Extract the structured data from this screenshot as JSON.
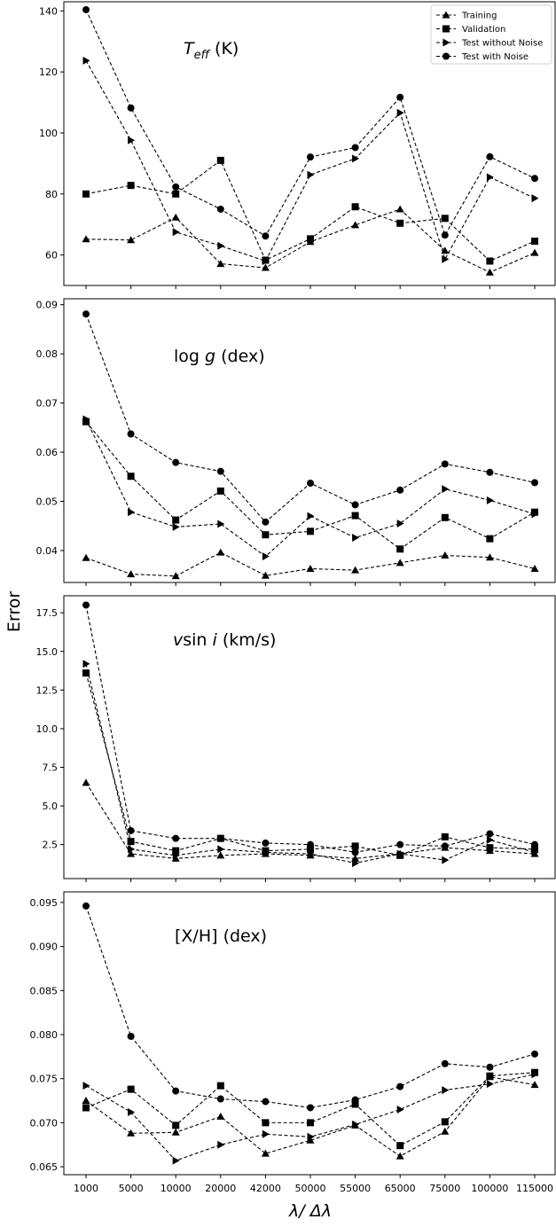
{
  "chart_data": {
    "type": "line",
    "ylabel": "Error",
    "xlabel": "λ/ Δλ",
    "categories": [
      "1000",
      "5000",
      "10000",
      "20000",
      "42000",
      "50000",
      "55000",
      "65000",
      "75000",
      "100000",
      "115000"
    ],
    "legend": {
      "placement": "top-right",
      "entries": [
        {
          "name": "Training",
          "marker": "triangle-up"
        },
        {
          "name": "Validation",
          "marker": "square"
        },
        {
          "name": "Test without Noise",
          "marker": "triangle-right"
        },
        {
          "name": "Test with Noise",
          "marker": "circle"
        }
      ]
    },
    "panels": [
      {
        "title": "T_eff (K)",
        "title_main": "T",
        "title_sub": "eff",
        "title_rest": " (K)",
        "ylim": [
          50,
          143
        ],
        "yticks": [
          60,
          80,
          100,
          120,
          140
        ],
        "ytick_labels": [
          "60",
          "80",
          "100",
          "120",
          "140"
        ],
        "series": [
          {
            "name": "Training",
            "values": [
              65.2,
              64.9,
              72.3,
              57.1,
              55.8,
              64.3,
              69.8,
              75.0,
              61.4,
              54.3,
              60.7
            ]
          },
          {
            "name": "Validation",
            "values": [
              80.0,
              82.8,
              80.0,
              91.0,
              58.3,
              65.3,
              75.8,
              70.4,
              72.0,
              58.0,
              64.5
            ]
          },
          {
            "name": "Test without Noise",
            "values": [
              123.7,
              97.6,
              67.5,
              63.0,
              58.0,
              86.3,
              91.6,
              106.6,
              58.6,
              85.5,
              78.6
            ]
          },
          {
            "name": "Test with Noise",
            "values": [
              140.4,
              108.2,
              82.3,
              75.0,
              66.2,
              92.1,
              95.2,
              111.7,
              66.5,
              92.2,
              85.1
            ]
          }
        ]
      },
      {
        "title": "log g (dex)",
        "title_main": "log",
        "title_sub": "",
        "title_rest": " (dex)",
        "title_italic": "g",
        "ylim": [
          0.0335,
          0.0912
        ],
        "yticks": [
          0.04,
          0.05,
          0.06,
          0.07,
          0.08,
          0.09
        ],
        "ytick_labels": [
          "0.04",
          "0.05",
          "0.06",
          "0.07",
          "0.08",
          "0.09"
        ],
        "series": [
          {
            "name": "Training",
            "values": [
              0.0385,
              0.0352,
              0.0348,
              0.0396,
              0.0349,
              0.0363,
              0.036,
              0.0375,
              0.039,
              0.0386,
              0.0363
            ]
          },
          {
            "name": "Validation",
            "values": [
              0.0662,
              0.0551,
              0.0462,
              0.0521,
              0.0432,
              0.0439,
              0.0471,
              0.0403,
              0.0467,
              0.0424,
              0.0478
            ]
          },
          {
            "name": "Test without Noise",
            "values": [
              0.0667,
              0.0478,
              0.0448,
              0.0454,
              0.0388,
              0.047,
              0.0426,
              0.0455,
              0.0525,
              0.0502,
              0.0474
            ]
          },
          {
            "name": "Test with Noise",
            "values": [
              0.0881,
              0.0637,
              0.0579,
              0.0561,
              0.0458,
              0.0537,
              0.0493,
              0.0523,
              0.0576,
              0.0559,
              0.0538
            ]
          }
        ]
      },
      {
        "title": "v sin i (km/s)",
        "title_main": "v",
        "title_sub": "",
        "title_rest": " (km/s)",
        "ylim": [
          0.3,
          18.6
        ],
        "yticks": [
          2.5,
          5.0,
          7.5,
          10.0,
          12.5,
          15.0,
          17.5
        ],
        "ytick_labels": [
          "2.5",
          "5.0",
          "7.5",
          "10.0",
          "12.5",
          "15.0",
          "17.5"
        ],
        "series": [
          {
            "name": "Training",
            "values": [
              6.5,
              1.9,
              1.6,
              1.8,
              1.9,
              1.8,
              1.6,
              1.9,
              2.3,
              2.1,
              1.9
            ]
          },
          {
            "name": "Validation",
            "values": [
              13.6,
              2.7,
              2.1,
              2.9,
              2.1,
              2.2,
              2.4,
              1.8,
              3.0,
              2.3,
              2.2
            ]
          },
          {
            "name": "Test without Noise",
            "values": [
              14.2,
              2.2,
              1.8,
              2.2,
              2.0,
              1.9,
              1.3,
              1.9,
              1.5,
              2.8,
              2.0
            ]
          },
          {
            "name": "Test with Noise",
            "values": [
              18.0,
              3.4,
              2.9,
              2.9,
              2.6,
              2.5,
              2.0,
              2.5,
              2.4,
              3.2,
              2.5
            ]
          }
        ]
      },
      {
        "title": "[X/H] (dex)",
        "title_main": "[X/H] (dex)",
        "title_sub": "",
        "title_rest": "",
        "ylim": [
          0.0641,
          0.0962
        ],
        "yticks": [
          0.065,
          0.07,
          0.075,
          0.08,
          0.085,
          0.09,
          0.095
        ],
        "ytick_labels": [
          "0.065",
          "0.070",
          "0.075",
          "0.080",
          "0.085",
          "0.090",
          "0.095"
        ],
        "series": [
          {
            "name": "Training",
            "values": [
              0.0725,
              0.0688,
              0.0689,
              0.0707,
              0.0665,
              0.068,
              0.0697,
              0.0662,
              0.069,
              0.0752,
              0.0743
            ]
          },
          {
            "name": "Validation",
            "values": [
              0.0717,
              0.0738,
              0.0697,
              0.0742,
              0.07,
              0.07,
              0.0721,
              0.0674,
              0.0701,
              0.0753,
              0.0757
            ]
          },
          {
            "name": "Test without Noise",
            "values": [
              0.0742,
              0.0712,
              0.0657,
              0.0675,
              0.0687,
              0.0684,
              0.0698,
              0.0715,
              0.0737,
              0.0744,
              0.0755
            ]
          },
          {
            "name": "Test with Noise",
            "values": [
              0.0946,
              0.0798,
              0.0736,
              0.0727,
              0.0724,
              0.0717,
              0.0726,
              0.0741,
              0.0767,
              0.0763,
              0.0778
            ]
          }
        ]
      }
    ]
  }
}
